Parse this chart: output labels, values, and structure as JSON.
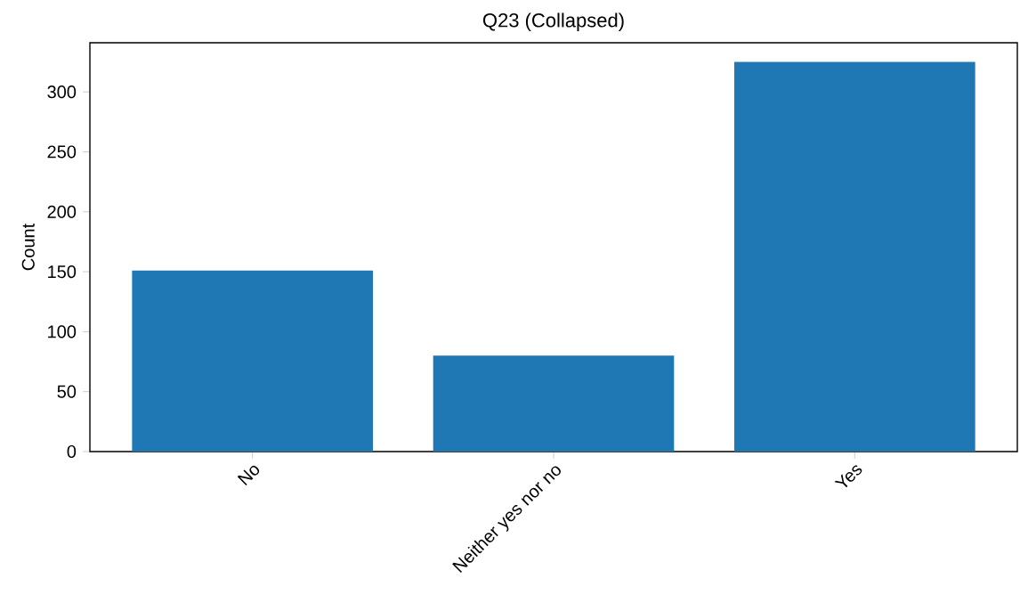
{
  "chart_data": {
    "type": "bar",
    "title": "Q23 (Collapsed)",
    "ylabel": "Count",
    "categories": [
      "No",
      "Neither yes nor no",
      "Yes"
    ],
    "values": [
      151,
      80,
      325
    ],
    "color": "#1f77b4",
    "ylim": [
      0,
      341
    ],
    "yticks": [
      0,
      50,
      100,
      150,
      200,
      250,
      300
    ]
  }
}
